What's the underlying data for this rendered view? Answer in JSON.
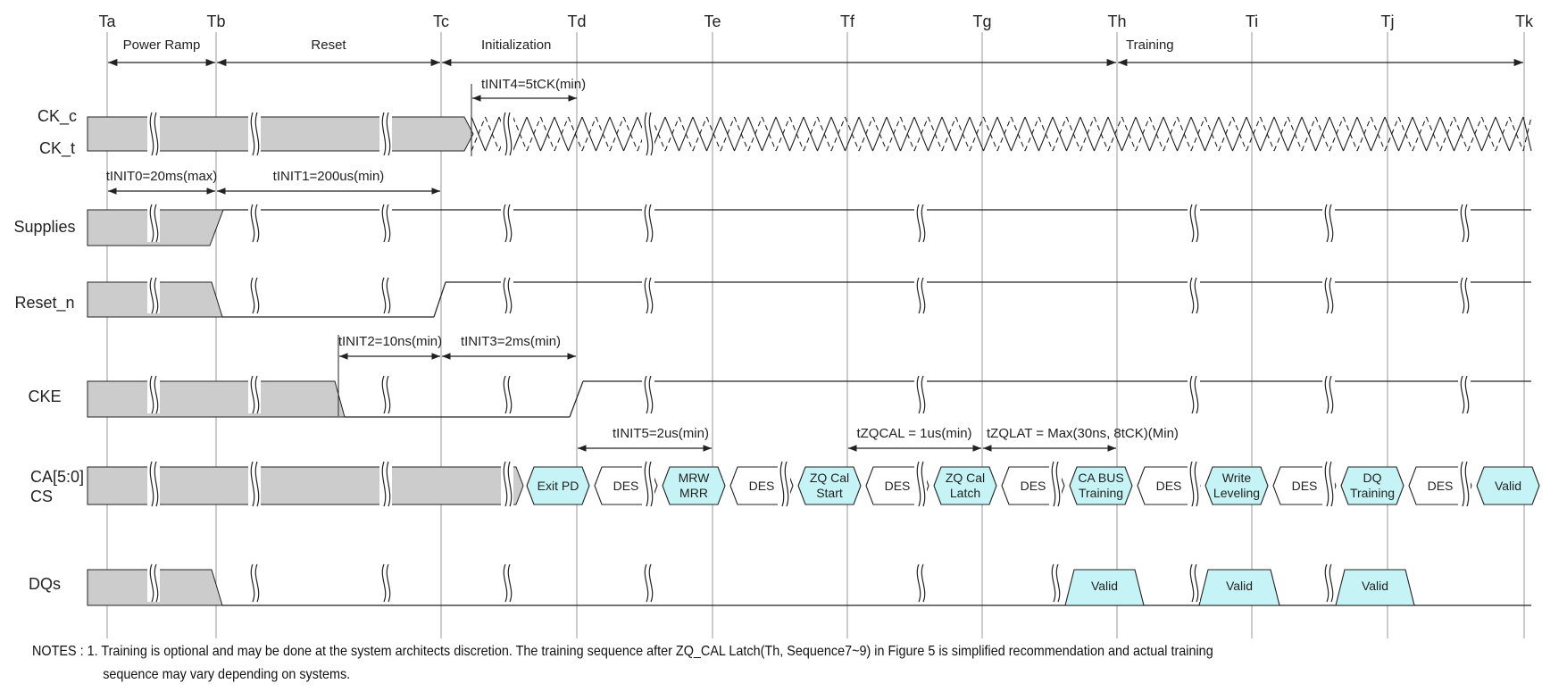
{
  "columns": [
    "Ta",
    "Tb",
    "Tc",
    "Td",
    "Te",
    "Tf",
    "Tg",
    "Th",
    "Ti",
    "Tj",
    "Tk"
  ],
  "phases": [
    "Power Ramp",
    "Reset",
    "Initialization",
    "Training"
  ],
  "signals": [
    "CK_c",
    "CK_t",
    "Supplies",
    "Reset_n",
    "CKE",
    "CA[5:0]",
    "CS",
    "DQs"
  ],
  "timings": {
    "tinit4": "tINIT4=5tCK(min)",
    "tinit0": "tINIT0=20ms(max)",
    "tinit1": "tINIT1=200us(min)",
    "tinit2": "tINIT2=10ns(min)",
    "tinit3": "tINIT3=2ms(min)",
    "tinit5": "tINIT5=2us(min)",
    "tzqcal": "tZQCAL = 1us(min)",
    "tzqlat": "tZQLAT = Max(30ns, 8tCK)(Min)"
  },
  "ca_commands": [
    {
      "l1": "Exit PD",
      "l2": "",
      "hl": true
    },
    {
      "l1": "DES",
      "l2": "",
      "hl": false
    },
    {
      "l1": "MRW",
      "l2": "MRR",
      "hl": true
    },
    {
      "l1": "DES",
      "l2": "",
      "hl": false
    },
    {
      "l1": "ZQ Cal",
      "l2": "Start",
      "hl": true
    },
    {
      "l1": "DES",
      "l2": "",
      "hl": false
    },
    {
      "l1": "ZQ Cal",
      "l2": "Latch",
      "hl": true
    },
    {
      "l1": "DES",
      "l2": "",
      "hl": false
    },
    {
      "l1": "CA BUS",
      "l2": "Training",
      "hl": true
    },
    {
      "l1": "DES",
      "l2": "",
      "hl": false
    },
    {
      "l1": "Write",
      "l2": "Leveling",
      "hl": true
    },
    {
      "l1": "DES",
      "l2": "",
      "hl": false
    },
    {
      "l1": "DQ",
      "l2": "Training",
      "hl": true
    },
    {
      "l1": "DES",
      "l2": "",
      "hl": false
    },
    {
      "l1": "Valid",
      "l2": "",
      "hl": true
    }
  ],
  "dq_valid": [
    "Valid",
    "Valid",
    "Valid"
  ],
  "colors": {
    "shade": "#cccccc",
    "highlight": "#c6f4f6",
    "line": "#222222",
    "grid": "#999999"
  },
  "notes": {
    "line1": "NOTES : 1. Training is optional and may be done at the system architects discretion. The training sequence after ZQ_CAL Latch(Th, Sequence7~9) in Figure 5 is simplified recommendation and actual training",
    "line2": "sequence may vary depending on systems."
  }
}
